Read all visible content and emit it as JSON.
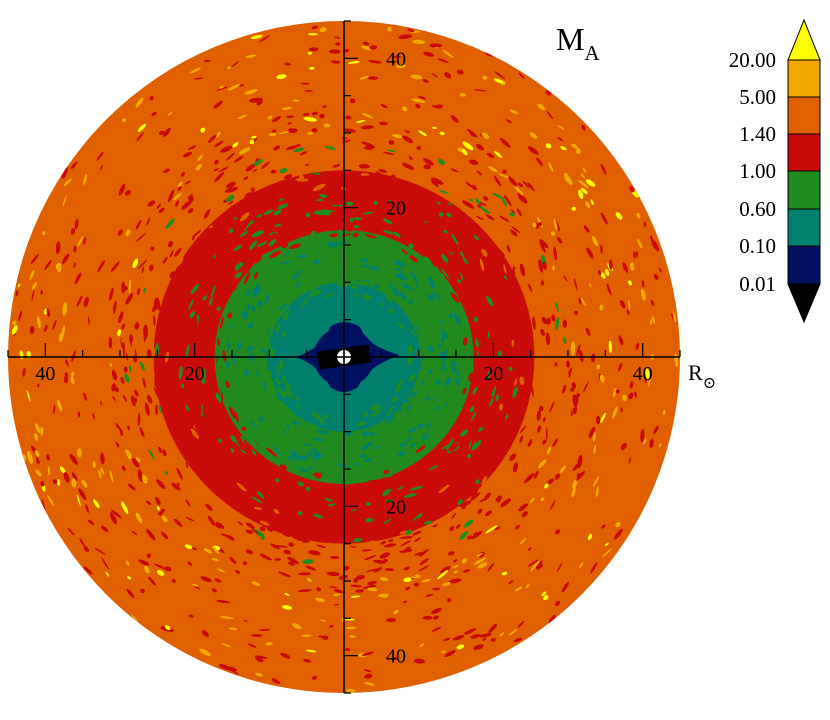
{
  "chart_data": {
    "type": "heatmap",
    "title": "M",
    "title_subscript": "A",
    "axis_unit": "R",
    "axis_unit_symbol": "⊙",
    "xlim": [
      -45,
      45
    ],
    "ylim": [
      -45,
      45
    ],
    "x_tick_labels": [
      {
        "value": -40,
        "label": "40"
      },
      {
        "value": -20,
        "label": "20"
      },
      {
        "value": 20,
        "label": "20"
      },
      {
        "value": 40,
        "label": "40"
      }
    ],
    "y_tick_labels": [
      {
        "value": 40,
        "label": "40"
      },
      {
        "value": 20,
        "label": "20"
      },
      {
        "value": -20,
        "label": "20"
      },
      {
        "value": -40,
        "label": "40"
      }
    ],
    "minor_tick_step": 5,
    "domain_radius": 45,
    "colorbar": {
      "levels": [
        "20.00",
        "5.00",
        "1.40",
        "1.00",
        "0.60",
        "0.10",
        "0.01"
      ],
      "bands": [
        {
          "range": "> 20.00",
          "color": "#ffff00"
        },
        {
          "range": "5.00 – 20.00",
          "color": "#f0a800"
        },
        {
          "range": "1.40 – 5.00",
          "color": "#e06000"
        },
        {
          "range": "1.00 – 1.40",
          "color": "#c80a0a"
        },
        {
          "range": "0.60 – 1.00",
          "color": "#1e8c1e"
        },
        {
          "range": "0.10 – 0.60",
          "color": "#00806e"
        },
        {
          "range": "0.01 – 0.10",
          "color": "#001060"
        },
        {
          "range": "< 0.01",
          "color": "#000000"
        }
      ]
    },
    "radial_zones": [
      {
        "band": "0.01 – 0.10",
        "outer_radius": 4,
        "color": "#001060"
      },
      {
        "band": "0.10 – 0.60",
        "outer_radius": 10,
        "color": "#00806e"
      },
      {
        "band": "0.60 – 1.00",
        "outer_radius": 17,
        "color": "#1e8c1e"
      },
      {
        "band": "1.00 – 1.40",
        "outer_radius": 25,
        "color": "#c80a0a"
      },
      {
        "band": "1.40 – 5.00",
        "outer_radius": 45,
        "color": "#e06000"
      }
    ]
  }
}
